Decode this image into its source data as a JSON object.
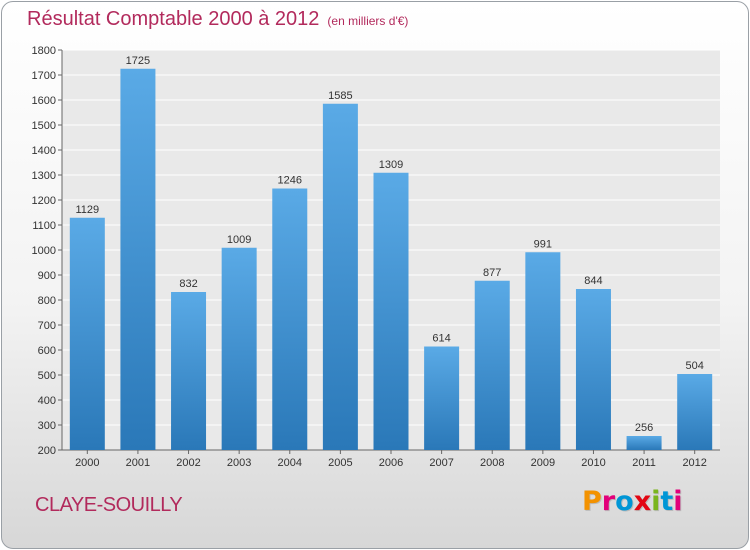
{
  "header": {
    "title": "Résultat Comptable 2000 à 2012",
    "subtitle": "(en milliers d'€)"
  },
  "footer": {
    "place": "CLAYE-SOUILLY",
    "logo_text": "Proxiti"
  },
  "colors": {
    "title": "#b22a5c",
    "bar_top": "#5aaae6",
    "bar_bottom": "#2a78b8",
    "logo": [
      "#f39200",
      "#e2007a",
      "#0096d6",
      "#e30613",
      "#7ab51d",
      "#0096d6",
      "#e2007a"
    ]
  },
  "chart_data": {
    "type": "bar",
    "title": "Résultat Comptable 2000 à 2012",
    "subtitle": "(en milliers d'€)",
    "categories": [
      "2000",
      "2001",
      "2002",
      "2003",
      "2004",
      "2005",
      "2006",
      "2007",
      "2008",
      "2009",
      "2010",
      "2011",
      "2012"
    ],
    "values": [
      1129,
      1725,
      832,
      1009,
      1246,
      1585,
      1309,
      614,
      877,
      991,
      844,
      256,
      504
    ],
    "ylim": [
      200,
      1800
    ],
    "yticks": [
      200,
      300,
      400,
      500,
      600,
      700,
      800,
      900,
      1000,
      1100,
      1200,
      1300,
      1400,
      1500,
      1600,
      1700,
      1800
    ],
    "grid": true,
    "data_labels": true
  }
}
